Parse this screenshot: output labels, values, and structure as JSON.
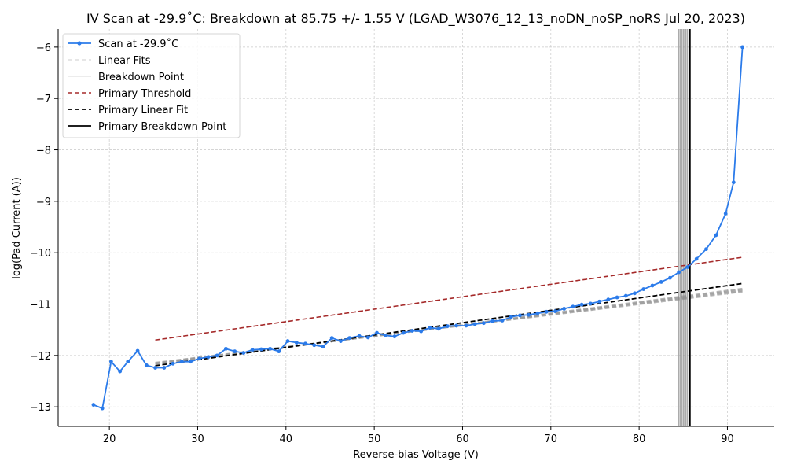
{
  "chart_data": {
    "type": "line",
    "title": "IV Scan at -29.9$^\\circ$C: Breakdown at 85.75 +/- 1.55 V (LGAD_W3076_12_13_noDN_noSP_noRS Jul 20, 2023)",
    "title_display": "IV Scan at -29.9˚C: Breakdown at 85.75 +/- 1.55 V (LGAD_W3076_12_13_noDN_noSP_noRS Jul 20, 2023)",
    "xlabel": "Reverse-bias Voltage (V)",
    "ylabel": "log(Pad Current (A))",
    "xlim": [
      14.2,
      95.3
    ],
    "ylim": [
      -13.38,
      -5.65
    ],
    "xticks": [
      20,
      30,
      40,
      50,
      60,
      70,
      80,
      90
    ],
    "yticks": [
      -13,
      -12,
      -11,
      -10,
      -9,
      -8,
      -7,
      -6
    ],
    "ytick_labels": [
      "−13",
      "−12",
      "−11",
      "−10",
      "−9",
      "−8",
      "−7",
      "−6"
    ],
    "grid": true,
    "legend_position": "upper-left",
    "legend": [
      "Scan at -29.9˚C",
      "Linear Fits",
      "Breakdown Point",
      "Primary Threshold",
      "Primary Linear Fit",
      "Primary Breakdown Point"
    ],
    "colors": {
      "scan": "#2b7bea",
      "threshold": "#a52a2a",
      "fit": "#000000",
      "fits_gray": "#999999",
      "breakdown_gray": "#888888",
      "grid": "#c8c8c8"
    },
    "series": [
      {
        "name": "Scan at -29.9˚C",
        "type": "line",
        "x": [
          18.2,
          19.2,
          20.2,
          21.2,
          22.1,
          23.2,
          24.2,
          25.2,
          26.2,
          27.2,
          28.2,
          29.2,
          30.2,
          31.2,
          32.2,
          33.2,
          34.2,
          35.2,
          36.2,
          37.2,
          38.2,
          39.2,
          40.2,
          41.2,
          42.2,
          43.2,
          44.2,
          45.2,
          46.2,
          47.2,
          48.3,
          49.3,
          50.3,
          51.3,
          52.3,
          53.3,
          54.3,
          55.3,
          56.3,
          57.3,
          58.3,
          59.3,
          60.4,
          61.4,
          62.4,
          63.4,
          64.5,
          65.5,
          66.5,
          67.5,
          68.5,
          69.5,
          70.5,
          71.5,
          72.5,
          73.5,
          74.5,
          75.5,
          76.5,
          77.5,
          78.5,
          79.5,
          80.5,
          81.5,
          82.5,
          83.5,
          84.5,
          85.5,
          86.5,
          87.6,
          88.7,
          89.8,
          90.7,
          91.7
        ],
        "y": [
          -12.96,
          -13.03,
          -12.12,
          -12.31,
          -12.12,
          -11.91,
          -12.19,
          -12.24,
          -12.24,
          -12.16,
          -12.12,
          -12.12,
          -12.06,
          -12.03,
          -12.0,
          -11.87,
          -11.92,
          -11.95,
          -11.89,
          -11.88,
          -11.87,
          -11.92,
          -11.72,
          -11.75,
          -11.77,
          -11.8,
          -11.83,
          -11.66,
          -11.72,
          -11.66,
          -11.62,
          -11.65,
          -11.56,
          -11.61,
          -11.63,
          -11.56,
          -11.52,
          -11.53,
          -11.46,
          -11.48,
          -11.43,
          -11.42,
          -11.42,
          -11.39,
          -11.37,
          -11.33,
          -11.32,
          -11.25,
          -11.22,
          -11.21,
          -11.18,
          -11.15,
          -11.14,
          -11.09,
          -11.05,
          -11.01,
          -10.99,
          -10.95,
          -10.91,
          -10.87,
          -10.84,
          -10.79,
          -10.71,
          -10.64,
          -10.57,
          -10.49,
          -10.38,
          -10.28,
          -10.12,
          -9.93,
          -9.66,
          -9.24,
          -8.63,
          -6.0
        ]
      },
      {
        "name": "Primary Threshold",
        "type": "dashed",
        "x": [
          25.2,
          91.7
        ],
        "y": [
          -11.7,
          -10.09
        ]
      },
      {
        "name": "Primary Linear Fit",
        "type": "dashed",
        "x": [
          25.2,
          91.7
        ],
        "y": [
          -12.2,
          -10.6
        ]
      },
      {
        "name": "Linear Fits",
        "type": "dashed-band",
        "lines": [
          {
            "x": [
              25.2,
              91.7
            ],
            "y": [
              -12.17,
              -10.7
            ]
          },
          {
            "x": [
              25.2,
              91.7
            ],
            "y": [
              -12.16,
              -10.72
            ]
          },
          {
            "x": [
              25.2,
              91.7
            ],
            "y": [
              -12.15,
              -10.74
            ]
          },
          {
            "x": [
              25.2,
              91.7
            ],
            "y": [
              -12.14,
              -10.76
            ]
          }
        ]
      },
      {
        "name": "Breakdown Point",
        "type": "vlines",
        "x": [
          84.45,
          84.65,
          84.85,
          85.05,
          85.25,
          85.45
        ]
      },
      {
        "name": "Primary Breakdown Point",
        "type": "vline",
        "x": [
          85.75
        ]
      }
    ]
  }
}
